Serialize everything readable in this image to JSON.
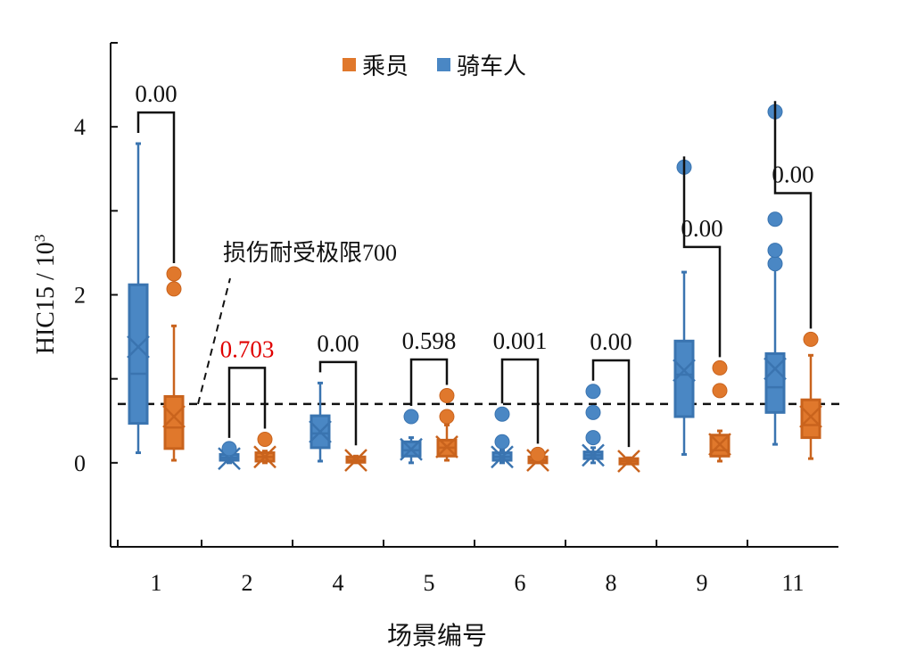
{
  "chart_data": {
    "type": "box",
    "title": "",
    "xlabel": "场景编号",
    "ylabel": "HIC15 / 10",
    "ylabel_sup": "3",
    "ylim": [
      -1,
      5
    ],
    "yticks": [
      0,
      2,
      4
    ],
    "yminor": [
      -1,
      1,
      3,
      5
    ],
    "colors": {
      "乘员": "#e0782c",
      "骑车人": "#4a87c4"
    },
    "legend": {
      "position": "top-center",
      "entries": [
        {
          "name": "乘员",
          "color": "#e0782c"
        },
        {
          "name": "骑车人",
          "color": "#4a87c4"
        }
      ]
    },
    "threshold": {
      "value": 0.7,
      "label": "损伤耐受极限700"
    },
    "categories": [
      "1",
      "2",
      "4",
      "5",
      "6",
      "8",
      "9",
      "11"
    ],
    "series": [
      {
        "name": "骑车人",
        "boxes": [
          {
            "min": 0.12,
            "q1": 0.47,
            "median": 1.06,
            "mean": 1.38,
            "q3": 2.12,
            "max": 3.8,
            "outliers": []
          },
          {
            "min": 0.0,
            "q1": 0.03,
            "median": 0.06,
            "mean": 0.05,
            "q3": 0.1,
            "max": 0.12,
            "outliers": [
              0.17
            ]
          },
          {
            "min": 0.02,
            "q1": 0.18,
            "median": 0.35,
            "mean": 0.37,
            "q3": 0.56,
            "max": 0.95,
            "outliers": []
          },
          {
            "min": 0.0,
            "q1": 0.08,
            "median": 0.15,
            "mean": 0.16,
            "q3": 0.25,
            "max": 0.3,
            "outliers": [
              0.55
            ]
          },
          {
            "min": 0.0,
            "q1": 0.03,
            "median": 0.07,
            "mean": 0.07,
            "q3": 0.12,
            "max": 0.15,
            "outliers": [
              0.25,
              0.58
            ]
          },
          {
            "min": 0.0,
            "q1": 0.05,
            "median": 0.09,
            "mean": 0.09,
            "q3": 0.13,
            "max": 0.18,
            "outliers": [
              0.3,
              0.6,
              0.85
            ]
          },
          {
            "min": 0.1,
            "q1": 0.55,
            "median": 1.05,
            "mean": 1.1,
            "q3": 1.45,
            "max": 2.27,
            "outliers": [
              3.52
            ]
          },
          {
            "min": 0.22,
            "q1": 0.6,
            "median": 0.9,
            "mean": 1.12,
            "q3": 1.3,
            "max": 2.3,
            "outliers": [
              2.37,
              2.53,
              2.9,
              4.18
            ]
          }
        ]
      },
      {
        "name": "乘员",
        "boxes": [
          {
            "min": 0.03,
            "q1": 0.17,
            "median": 0.42,
            "mean": 0.55,
            "q3": 0.79,
            "max": 1.63,
            "outliers": [
              2.07,
              2.25
            ]
          },
          {
            "min": 0.0,
            "q1": 0.02,
            "median": 0.07,
            "mean": 0.07,
            "q3": 0.12,
            "max": 0.14,
            "outliers": [
              0.28
            ]
          },
          {
            "min": 0.0,
            "q1": 0.01,
            "median": 0.03,
            "mean": 0.03,
            "q3": 0.07,
            "max": 0.08,
            "outliers": []
          },
          {
            "min": 0.03,
            "q1": 0.08,
            "median": 0.18,
            "mean": 0.19,
            "q3": 0.27,
            "max": 0.45,
            "outliers": [
              0.55,
              0.8
            ]
          },
          {
            "min": 0.0,
            "q1": 0.0,
            "median": 0.03,
            "mean": 0.03,
            "q3": 0.07,
            "max": 0.08,
            "outliers": [
              0.1
            ]
          },
          {
            "min": 0.0,
            "q1": 0.0,
            "median": 0.02,
            "mean": 0.02,
            "q3": 0.05,
            "max": 0.06,
            "outliers": []
          },
          {
            "min": 0.02,
            "q1": 0.08,
            "median": 0.15,
            "mean": 0.22,
            "q3": 0.33,
            "max": 0.38,
            "outliers": [
              0.86,
              1.13
            ]
          },
          {
            "min": 0.05,
            "q1": 0.3,
            "median": 0.45,
            "mean": 0.55,
            "q3": 0.75,
            "max": 1.28,
            "outliers": [
              1.47
            ]
          }
        ]
      }
    ],
    "p_values": [
      {
        "category": "1",
        "label": "0.00",
        "level": 4.17,
        "color": "#111111"
      },
      {
        "category": "2",
        "label": "0.703",
        "level": 1.13,
        "color": "#e00000"
      },
      {
        "category": "4",
        "label": "0.00",
        "level": 1.2,
        "color": "#111111"
      },
      {
        "category": "5",
        "label": "0.598",
        "level": 1.23,
        "color": "#111111"
      },
      {
        "category": "6",
        "label": "0.001",
        "level": 1.23,
        "color": "#111111"
      },
      {
        "category": "8",
        "label": "0.00",
        "level": 1.22,
        "color": "#111111"
      },
      {
        "category": "9",
        "label": "0.00",
        "level": 2.57,
        "color": "#111111"
      },
      {
        "category": "11",
        "label": "0.00",
        "level": 3.21,
        "color": "#111111"
      }
    ]
  }
}
